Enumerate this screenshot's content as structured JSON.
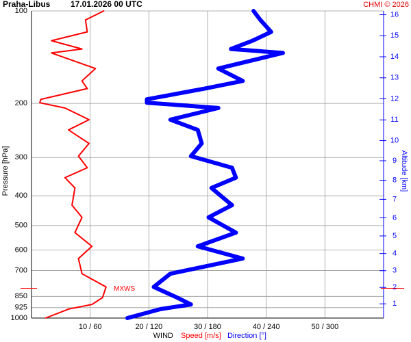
{
  "chart_data": {
    "type": "profile",
    "title": "Praha-Libus",
    "subtitle": "17.01.2026 00 UTC",
    "credit": "CHMI © 2026",
    "ylabel": "Pressure [hPa]",
    "y2label": "Altitude [km]",
    "xlabel": "WIND",
    "pressure": [
      100,
      107,
      117,
      125,
      133,
      137,
      154,
      169,
      179,
      194,
      199,
      207,
      226,
      244,
      270,
      297,
      324,
      349,
      377,
      429,
      470,
      527,
      584,
      640,
      717,
      792,
      858,
      903,
      935,
      1000
    ],
    "series": [
      {
        "name": "Speed [m/s]",
        "color": "#ff0000",
        "axis": "x",
        "values": [
          12.3,
          9.2,
          9.5,
          3.4,
          8.6,
          3.4,
          10.9,
          8.6,
          9.5,
          1.6,
          1.4,
          5.7,
          9.8,
          6.3,
          9.8,
          8.0,
          9.5,
          5.7,
          7.4,
          6.9,
          8.6,
          7.4,
          10.3,
          8.0,
          8.6,
          12.7,
          12.1,
          10.3,
          6.3,
          2.4
        ]
      },
      {
        "name": "Direction [°]",
        "color": "#0000ff",
        "axis": "x2",
        "values": [
          227,
          234,
          245,
          226,
          204,
          257,
          191,
          216,
          177,
          118,
          118,
          191,
          142,
          170,
          174,
          163,
          205,
          209,
          184,
          205,
          181,
          209,
          170,
          216,
          142,
          125,
          149,
          163,
          132,
          98
        ]
      }
    ],
    "max_wind": {
      "label": "MXWS",
      "pressure": 800
    },
    "xlim": [
      0,
      60
    ],
    "x2lim": [
      0,
      360
    ],
    "xticks": [
      {
        "value": 10,
        "label": "10 / 60"
      },
      {
        "value": 20,
        "label": "20 / 120"
      },
      {
        "value": 30,
        "label": "30 / 180"
      },
      {
        "value": 40,
        "label": "40 / 240"
      },
      {
        "value": 50,
        "label": "50 / 300"
      }
    ],
    "ylim": [
      1000,
      100
    ],
    "ylog": true,
    "yticks": [
      100,
      200,
      300,
      400,
      500,
      600,
      700,
      850,
      925,
      1000
    ],
    "y2ticks": [
      1,
      2,
      3,
      4,
      5,
      6,
      7,
      8,
      9,
      10,
      11,
      12,
      13,
      14,
      15,
      16
    ],
    "grid": true
  }
}
